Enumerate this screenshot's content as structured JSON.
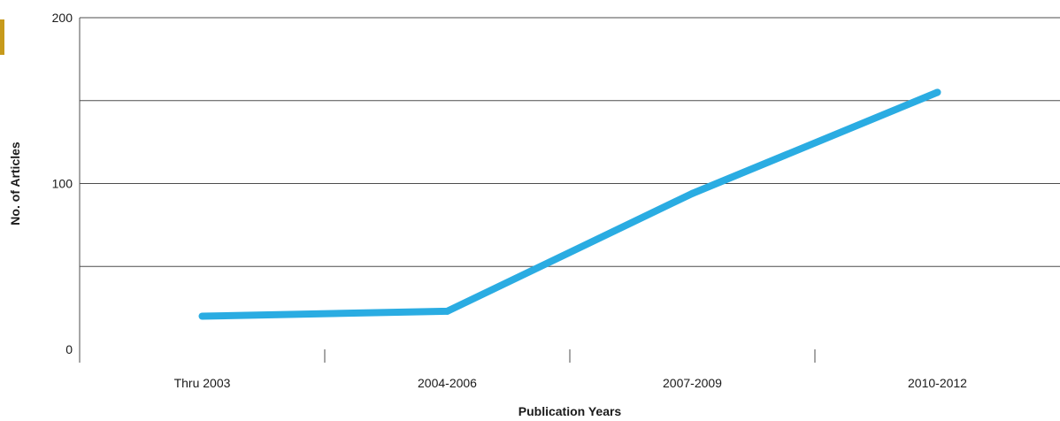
{
  "chart_data": {
    "type": "line",
    "xlabel": "Publication Years",
    "ylabel": "No. of Articles",
    "categories": [
      "Thru 2003",
      "2004-2006",
      "2007-2009",
      "2010-2012"
    ],
    "series": [
      {
        "values": [
          20,
          23,
          94,
          155
        ]
      }
    ],
    "ylim": [
      0,
      200
    ],
    "yticks": [
      0,
      100,
      200
    ],
    "gridlines": [
      50,
      100,
      150,
      200
    ],
    "grid": true,
    "legend": "none"
  },
  "colors": {
    "line": "#2aace2",
    "accent": "#c79a1b",
    "grid": "#4d4d4d",
    "axis": "#4d4d4d"
  }
}
